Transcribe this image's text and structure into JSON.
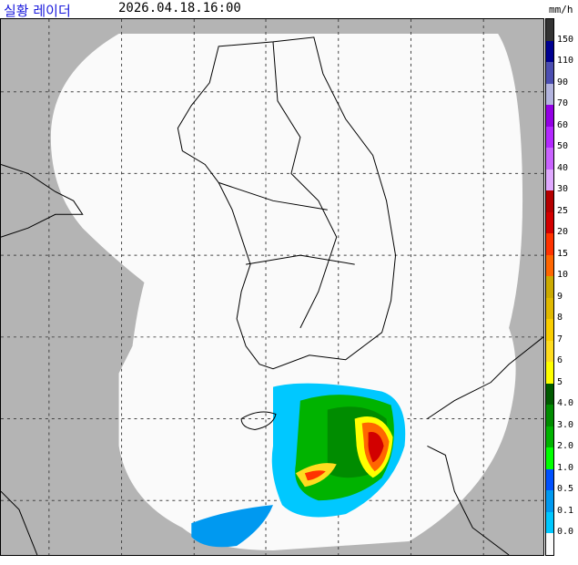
{
  "header": {
    "title": "실황 레이더",
    "timestamp": "2026.04.18.16:00",
    "unit": "mm/h"
  },
  "map": {
    "background_color": "#b4b4b4",
    "coverage_color": "#fafafa",
    "coastline_color": "#000000",
    "grid": "dashed"
  },
  "legend": {
    "colors": [
      "#333333",
      "#000090",
      "#4c4eb1",
      "#b3b4de",
      "#9300e4",
      "#b329ff",
      "#c963ff",
      "#e0a9ff",
      "#b40000",
      "#d20000",
      "#ff3300",
      "#ff6600",
      "#ccaa00",
      "#e0b900",
      "#f9cd00",
      "#ffdc1f",
      "#ffff00",
      "#005a00",
      "#008c00",
      "#00b300",
      "#00ff00",
      "#0051ff",
      "#0099f0",
      "#00c8ff",
      "#fafafa"
    ],
    "labels": [
      "150",
      "110",
      "90",
      "70",
      "60",
      "50",
      "40",
      "30",
      "25",
      "20",
      "15",
      "10",
      "9",
      "8",
      "7",
      "6",
      "5",
      "4.0",
      "3.0",
      "2.0",
      "1.0",
      "0.5",
      "0.1",
      "0.0"
    ]
  }
}
